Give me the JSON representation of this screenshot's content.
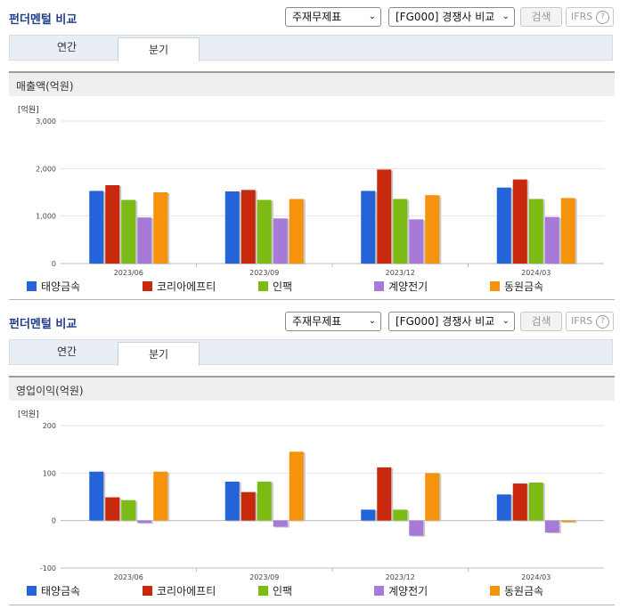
{
  "colors": {
    "series": [
      "#2563d8",
      "#c8290c",
      "#7cba15",
      "#a77ad8",
      "#f5930c"
    ],
    "header_title": "#1f3d8a"
  },
  "panels": [
    {
      "header": {
        "title": "펀더멘털 비교",
        "select_report": "주재무제표",
        "select_compare": "[FG000] 경쟁사 비교",
        "search_label": "검색",
        "ifrs_label": "IFRS",
        "help_icon": "?"
      },
      "tabs": [
        {
          "label": "연간",
          "active": false
        },
        {
          "label": "분기",
          "active": true
        }
      ],
      "chart_title": "매출액(억원)",
      "unit_label": "[억원]"
    },
    {
      "header": {
        "title": "펀더멘털 비교",
        "select_report": "주재무제표",
        "select_compare": "[FG000] 경쟁사 비교",
        "search_label": "검색",
        "ifrs_label": "IFRS",
        "help_icon": "?"
      },
      "tabs": [
        {
          "label": "연간",
          "active": false
        },
        {
          "label": "분기",
          "active": true
        }
      ],
      "chart_title": "영업이익(억원)",
      "unit_label": "[억원]"
    }
  ],
  "chart_data": [
    {
      "type": "bar",
      "title": "매출액(억원)",
      "ylabel": "[억원]",
      "categories": [
        "2023/06",
        "2023/09",
        "2023/12",
        "2024/03"
      ],
      "ylim": [
        0,
        3000
      ],
      "yticks": [
        0,
        1000,
        2000,
        3000
      ],
      "ytick_labels": [
        "0",
        "1,000",
        "2,000",
        "3,000"
      ],
      "grid": true,
      "legend_position": "bottom",
      "series": [
        {
          "name": "태양금속",
          "values": [
            1530,
            1520,
            1530,
            1600
          ]
        },
        {
          "name": "코리아에프티",
          "values": [
            1650,
            1550,
            1980,
            1770
          ]
        },
        {
          "name": "인팩",
          "values": [
            1340,
            1340,
            1360,
            1360
          ]
        },
        {
          "name": "계양전기",
          "values": [
            970,
            950,
            930,
            980
          ]
        },
        {
          "name": "동원금속",
          "values": [
            1500,
            1360,
            1440,
            1380
          ]
        }
      ]
    },
    {
      "type": "bar",
      "title": "영업이익(억원)",
      "ylabel": "[억원]",
      "categories": [
        "2023/06",
        "2023/09",
        "2023/12",
        "2024/03"
      ],
      "ylim": [
        -100,
        200
      ],
      "yticks": [
        -100,
        0,
        100,
        200
      ],
      "ytick_labels": [
        "-100",
        "0",
        "100",
        "200"
      ],
      "grid": true,
      "legend_position": "bottom",
      "series": [
        {
          "name": "태양금속",
          "values": [
            103,
            82,
            23,
            55
          ]
        },
        {
          "name": "코리아에프티",
          "values": [
            49,
            60,
            112,
            78
          ]
        },
        {
          "name": "인팩",
          "values": [
            43,
            82,
            23,
            80
          ]
        },
        {
          "name": "계양전기",
          "values": [
            -5,
            -13,
            -32,
            -25
          ]
        },
        {
          "name": "동원금속",
          "values": [
            103,
            145,
            100,
            -3
          ]
        }
      ]
    }
  ]
}
